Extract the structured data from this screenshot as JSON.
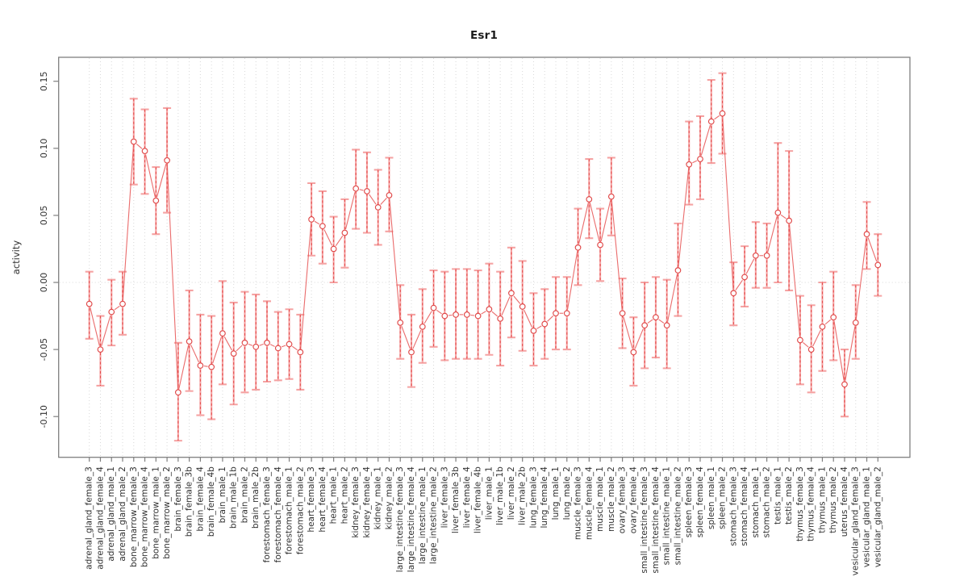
{
  "colors": {
    "background": "#ffffff",
    "point_stroke": "#e04848",
    "line_color": "#e85c5c",
    "bar_color": "#f5a3a3",
    "bar_dash_color": "#e23e3e",
    "grid_color": "#d8d8d8",
    "axis_color": "#7f7f7f",
    "text_color": "#303030",
    "title_color": "#1a1a1a"
  },
  "chart_data": {
    "type": "scatter",
    "title": "Esr1",
    "xlabel": "",
    "ylabel": "activity",
    "ylim": [
      -0.13,
      0.168
    ],
    "yticks": [
      -0.1,
      -0.05,
      0.0,
      0.05,
      0.1,
      0.15
    ],
    "ytick_labels": [
      "-0.10",
      "-0.05",
      "0.00",
      "0.05",
      "0.10",
      "0.15"
    ],
    "grid": "vertical dotted gridline at every category; dotted horizontal line at y=0",
    "legend": "none",
    "marker": "open-circle",
    "error_bars": "pink bars with caps and red dashed center line",
    "categories": [
      "adrenal_gland_female_3",
      "adrenal_gland_female_4",
      "adrenal_gland_male_1",
      "adrenal_gland_male_2",
      "bone_marrow_female_3",
      "bone_marrow_female_4",
      "bone_marrow_male_1",
      "bone_marrow_male_2",
      "brain_female_3",
      "brain_female_3b",
      "brain_female_4",
      "brain_female_4b",
      "brain_male_1",
      "brain_male_1b",
      "brain_male_2",
      "brain_male_2b",
      "forestomach_female_3",
      "forestomach_female_4",
      "forestomach_male_1",
      "forestomach_male_2",
      "heart_female_3",
      "heart_female_4",
      "heart_male_1",
      "heart_male_2",
      "kidney_female_3",
      "kidney_female_4",
      "kidney_male_1",
      "kidney_male_2",
      "large_intestine_female_3",
      "large_intestine_female_4",
      "large_intestine_male_1",
      "large_intestine_male_2",
      "liver_female_3",
      "liver_female_3b",
      "liver_female_4",
      "liver_female_4b",
      "liver_male_1",
      "liver_male_1b",
      "liver_male_2",
      "liver_male_2b",
      "lung_female_3",
      "lung_female_4",
      "lung_male_1",
      "lung_male_2",
      "muscle_female_3",
      "muscle_female_4",
      "muscle_male_1",
      "muscle_male_2",
      "ovary_female_3",
      "ovary_female_4",
      "small_intestine_female_3",
      "small_intestine_female_4",
      "small_intestine_male_1",
      "small_intestine_male_2",
      "spleen_female_3",
      "spleen_female_4",
      "spleen_male_1",
      "spleen_male_2",
      "stomach_female_3",
      "stomach_female_4",
      "stomach_male_1",
      "stomach_male_2",
      "testis_male_1",
      "testis_male_2",
      "thymus_female_3",
      "thymus_female_4",
      "thymus_male_1",
      "thymus_male_2",
      "uterus_female_4",
      "vesicular_gland_female_3",
      "vesicular_gland_male_1",
      "vesicular_gland_male_2"
    ],
    "series": [
      {
        "name": "activity",
        "values": [
          -0.016,
          -0.05,
          -0.022,
          -0.016,
          0.105,
          0.098,
          0.061,
          0.091,
          -0.082,
          -0.044,
          -0.062,
          -0.063,
          -0.038,
          -0.053,
          -0.045,
          -0.048,
          -0.045,
          -0.049,
          -0.046,
          -0.052,
          0.047,
          0.042,
          0.025,
          0.037,
          0.07,
          0.068,
          0.056,
          0.065,
          -0.03,
          -0.052,
          -0.033,
          -0.019,
          -0.025,
          -0.024,
          -0.024,
          -0.025,
          -0.02,
          -0.027,
          -0.008,
          -0.018,
          -0.036,
          -0.031,
          -0.023,
          -0.023,
          0.026,
          0.062,
          0.028,
          0.064,
          -0.023,
          -0.052,
          -0.032,
          -0.026,
          -0.032,
          0.009,
          0.088,
          0.092,
          0.12,
          0.126,
          -0.008,
          0.004,
          0.02,
          0.02,
          0.052,
          0.046,
          -0.043,
          -0.05,
          -0.033,
          -0.026,
          -0.076,
          -0.03,
          0.036,
          0.013
        ],
        "ci_low": [
          -0.042,
          -0.077,
          -0.047,
          -0.039,
          0.073,
          0.066,
          0.036,
          0.052,
          -0.118,
          -0.081,
          -0.099,
          -0.102,
          -0.076,
          -0.091,
          -0.082,
          -0.08,
          -0.074,
          -0.073,
          -0.072,
          -0.08,
          0.02,
          0.014,
          0.0,
          0.011,
          0.04,
          0.037,
          0.028,
          0.038,
          -0.057,
          -0.078,
          -0.06,
          -0.048,
          -0.058,
          -0.057,
          -0.057,
          -0.057,
          -0.054,
          -0.062,
          -0.041,
          -0.051,
          -0.062,
          -0.057,
          -0.05,
          -0.05,
          -0.002,
          0.033,
          0.001,
          0.035,
          -0.049,
          -0.077,
          -0.064,
          -0.056,
          -0.064,
          -0.025,
          0.058,
          0.062,
          0.089,
          0.096,
          -0.032,
          -0.018,
          -0.004,
          -0.004,
          0.0,
          -0.006,
          -0.076,
          -0.082,
          -0.066,
          -0.058,
          -0.1,
          -0.057,
          0.01,
          -0.01
        ],
        "ci_high": [
          0.008,
          -0.025,
          0.002,
          0.008,
          0.137,
          0.129,
          0.086,
          0.13,
          -0.045,
          -0.006,
          -0.024,
          -0.025,
          0.001,
          -0.015,
          -0.007,
          -0.009,
          -0.014,
          -0.022,
          -0.02,
          -0.024,
          0.074,
          0.068,
          0.049,
          0.062,
          0.099,
          0.097,
          0.084,
          0.093,
          -0.002,
          -0.024,
          -0.005,
          0.009,
          0.008,
          0.01,
          0.01,
          0.009,
          0.014,
          0.008,
          0.026,
          0.016,
          -0.008,
          -0.005,
          0.004,
          0.004,
          0.055,
          0.092,
          0.055,
          0.093,
          0.003,
          -0.026,
          0.0,
          0.004,
          0.002,
          0.044,
          0.12,
          0.124,
          0.151,
          0.156,
          0.015,
          0.027,
          0.045,
          0.044,
          0.104,
          0.098,
          -0.01,
          -0.017,
          0.0,
          0.008,
          -0.05,
          -0.002,
          0.06,
          0.036
        ]
      }
    ]
  }
}
